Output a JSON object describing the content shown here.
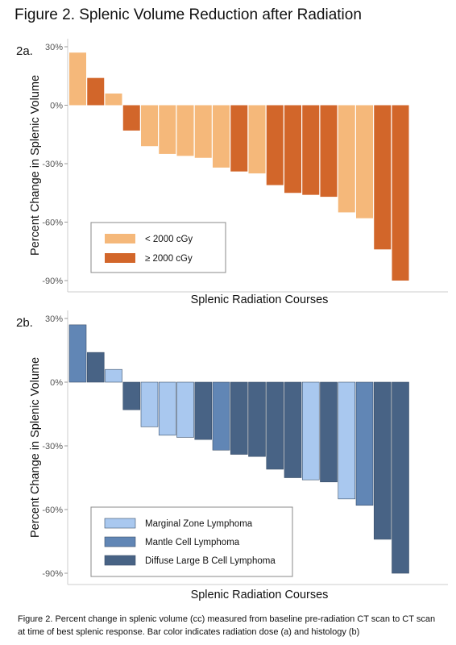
{
  "figure": {
    "title": "Figure 2. Splenic Volume Reduction after Radiation",
    "caption": "Figure 2. Percent change in splenic volume (cc) measured from baseline pre-radiation CT scan to CT scan at time of best splenic response. Bar color indicates radiation dose (a) and histology (b)"
  },
  "chart_data": [
    {
      "panel": "2a.",
      "type": "bar",
      "xlabel": "Splenic Radiation Courses",
      "ylabel": "Percent Change in Splenic Volume",
      "ylim": [
        -90,
        30
      ],
      "yticks": [
        30,
        0,
        -30,
        -60,
        -90
      ],
      "ytick_labels": [
        "30%",
        "0%",
        "-30%",
        "-60%",
        "-90%"
      ],
      "legend_position": "bottom-left",
      "groups": [
        {
          "name": "< 2000 cGy",
          "color": "#F5B87A"
        },
        {
          "name": "≥ 2000 cGy",
          "color": "#D2662A"
        }
      ],
      "values": [
        27,
        14,
        6,
        -13,
        -21,
        -25,
        -26,
        -27,
        -32,
        -34,
        -35,
        -41,
        -45,
        -46,
        -47,
        -55,
        -58,
        -74,
        -90
      ],
      "group_index": [
        0,
        1,
        0,
        1,
        0,
        0,
        0,
        0,
        0,
        1,
        0,
        1,
        1,
        1,
        1,
        0,
        0,
        1,
        1
      ]
    },
    {
      "panel": "2b.",
      "type": "bar",
      "xlabel": "Splenic Radiation Courses",
      "ylabel": "Percent Change in Splenic Volume",
      "ylim": [
        -90,
        30
      ],
      "yticks": [
        30,
        0,
        -30,
        -60,
        -90
      ],
      "ytick_labels": [
        "30%",
        "0%",
        "-30%",
        "-60%",
        "-90%"
      ],
      "legend_position": "bottom-left",
      "groups": [
        {
          "name": "Marginal Zone Lymphoma",
          "color": "#A9C8EF"
        },
        {
          "name": "Mantle Cell Lymphoma",
          "color": "#6186B5"
        },
        {
          "name": "Diffuse Large B Cell Lymphoma",
          "color": "#486385"
        }
      ],
      "values": [
        27,
        14,
        6,
        -13,
        -21,
        -25,
        -26,
        -27,
        -32,
        -34,
        -35,
        -41,
        -45,
        -46,
        -47,
        -55,
        -58,
        -74,
        -90
      ],
      "group_index": [
        1,
        2,
        0,
        2,
        0,
        0,
        0,
        2,
        1,
        2,
        2,
        2,
        2,
        0,
        2,
        0,
        1,
        2,
        2
      ]
    }
  ]
}
